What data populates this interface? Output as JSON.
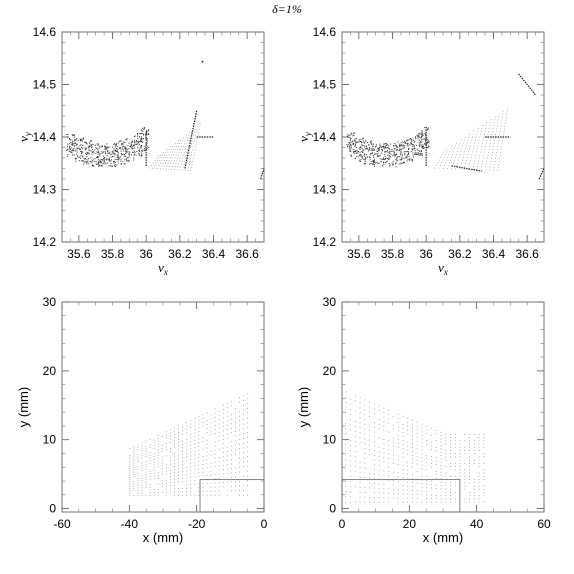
{
  "figure_title": "δ=1%",
  "chart_data": [
    {
      "id": "tune-left",
      "type": "scatter",
      "xlabel": "νx",
      "ylabel": "νy",
      "xlim": [
        35.5,
        36.7
      ],
      "ylim": [
        14.2,
        14.6
      ],
      "xticks": [
        35.6,
        35.8,
        36,
        36.2,
        36.4,
        36.6
      ],
      "xtick_labels": [
        "35.6",
        "35.8",
        "36",
        "36.2",
        "36.4",
        "36.6"
      ],
      "yticks": [
        14.2,
        14.3,
        14.4,
        14.5,
        14.6
      ],
      "ytick_labels": [
        "14.2",
        "14.3",
        "14.4",
        "14.5",
        "14.6"
      ],
      "grid": false,
      "series": [
        {
          "kind": "cloud",
          "x": [
            35.55,
            35.6,
            35.65,
            35.7,
            35.75,
            35.8,
            35.85,
            35.9,
            35.95,
            35.99
          ],
          "y": [
            14.38,
            14.37,
            14.365,
            14.36,
            14.36,
            14.36,
            14.365,
            14.37,
            14.38,
            14.39
          ]
        },
        {
          "kind": "line",
          "x": [
            36.0,
            36.0
          ],
          "y": [
            14.345,
            14.41
          ]
        },
        {
          "kind": "line",
          "x": [
            36.23,
            36.3
          ],
          "y": [
            14.34,
            14.45
          ]
        },
        {
          "kind": "line",
          "x": [
            36.3,
            36.4
          ],
          "y": [
            14.4,
            14.4
          ]
        },
        {
          "kind": "fan",
          "x": [
            36.02,
            36.28
          ],
          "y": [
            14.34,
            14.43
          ]
        },
        {
          "kind": "point",
          "x": [
            36.33
          ],
          "y": [
            14.545
          ]
        },
        {
          "kind": "line",
          "x": [
            36.68,
            36.7
          ],
          "y": [
            14.32,
            14.34
          ]
        }
      ]
    },
    {
      "id": "tune-right",
      "type": "scatter",
      "xlabel": "νx",
      "ylabel": "νy",
      "xlim": [
        35.5,
        36.7
      ],
      "ylim": [
        14.2,
        14.6
      ],
      "xticks": [
        35.6,
        35.8,
        36,
        36.2,
        36.4,
        36.6
      ],
      "xtick_labels": [
        "35.6",
        "35.8",
        "36",
        "36.2",
        "36.4",
        "36.6"
      ],
      "yticks": [
        14.2,
        14.3,
        14.4,
        14.5,
        14.6
      ],
      "ytick_labels": [
        "14.2",
        "14.3",
        "14.4",
        "14.5",
        "14.6"
      ],
      "grid": false,
      "series": [
        {
          "kind": "cloud",
          "x": [
            35.55,
            35.6,
            35.65,
            35.7,
            35.75,
            35.8,
            35.85,
            35.9,
            35.95,
            35.99
          ],
          "y": [
            14.38,
            14.37,
            14.365,
            14.36,
            14.36,
            14.36,
            14.365,
            14.37,
            14.38,
            14.39
          ]
        },
        {
          "kind": "line",
          "x": [
            36.0,
            36.0
          ],
          "y": [
            14.345,
            14.42
          ]
        },
        {
          "kind": "fan",
          "x": [
            36.05,
            36.45
          ],
          "y": [
            14.34,
            14.46
          ]
        },
        {
          "kind": "line",
          "x": [
            36.15,
            36.33
          ],
          "y": [
            14.345,
            14.335
          ]
        },
        {
          "kind": "line",
          "x": [
            36.35,
            36.5
          ],
          "y": [
            14.4,
            14.4
          ]
        },
        {
          "kind": "line",
          "x": [
            36.55,
            36.65
          ],
          "y": [
            14.52,
            14.48
          ]
        },
        {
          "kind": "line",
          "x": [
            36.67,
            36.7
          ],
          "y": [
            14.32,
            14.34
          ]
        }
      ]
    },
    {
      "id": "aperture-left",
      "type": "scatter",
      "xlabel": "x (mm)",
      "ylabel": "y (mm)",
      "xlim": [
        -60,
        0
      ],
      "ylim": [
        -0.5,
        30
      ],
      "xticks": [
        -60,
        -40,
        -20,
        0
      ],
      "xtick_labels": [
        "-60",
        "-40",
        "-20",
        "0"
      ],
      "yticks": [
        0,
        10,
        20,
        30
      ],
      "ytick_labels": [
        "0",
        "10",
        "20",
        "30"
      ],
      "grid": false,
      "series": [
        {
          "kind": "grid-region",
          "x": [
            -40,
            -5
          ],
          "y": [
            2,
            17
          ]
        },
        {
          "kind": "box",
          "x": [
            -19,
            0
          ],
          "y": [
            -0.5,
            4.2
          ]
        }
      ]
    },
    {
      "id": "aperture-right",
      "type": "scatter",
      "xlabel": "x (mm)",
      "ylabel": "y (mm)",
      "xlim": [
        0,
        60
      ],
      "ylim": [
        -0.5,
        30
      ],
      "xticks": [
        0,
        20,
        40,
        60
      ],
      "xtick_labels": [
        "0",
        "20",
        "40",
        "60"
      ],
      "yticks": [
        0,
        10,
        20,
        30
      ],
      "ytick_labels": [
        "0",
        "10",
        "20",
        "30"
      ],
      "grid": false,
      "series": [
        {
          "kind": "grid-region",
          "x": [
            1,
            42
          ],
          "y": [
            1,
            17
          ]
        },
        {
          "kind": "box",
          "x": [
            0,
            35
          ],
          "y": [
            -0.5,
            4.2
          ]
        }
      ]
    }
  ]
}
